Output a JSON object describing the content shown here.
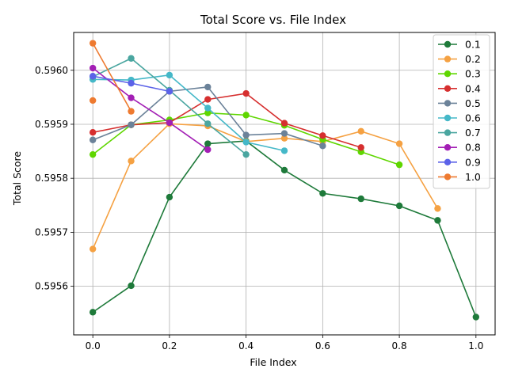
{
  "chart_data": {
    "type": "line",
    "title": "Total Score vs. File Index",
    "xlabel": "File Index",
    "ylabel": "Total Score",
    "xlim": [
      -0.05,
      1.05
    ],
    "ylim": [
      0.59551,
      0.59607
    ],
    "xticks": [
      0.0,
      0.2,
      0.4,
      0.6,
      0.8,
      1.0
    ],
    "xtick_labels": [
      "0.0",
      "0.2",
      "0.4",
      "0.6",
      "0.8",
      "1.0"
    ],
    "yticks": [
      0.5956,
      0.5957,
      0.5958,
      0.5959,
      0.596
    ],
    "ytick_labels": [
      "0.5956",
      "0.5957",
      "0.5958",
      "0.5959",
      "0.5960"
    ],
    "grid": true,
    "legend_position": "top-right",
    "series": [
      {
        "name": "0.1",
        "color": "#1e7a3a",
        "x": [
          0.0,
          0.1,
          0.2,
          0.3,
          0.4,
          0.5,
          0.6,
          0.7,
          0.8,
          0.9,
          1.0
        ],
        "y": [
          0.595552,
          0.595601,
          0.595765,
          0.595864,
          0.595869,
          0.595815,
          0.595772,
          0.595762,
          0.595749,
          0.595722,
          0.595543
        ]
      },
      {
        "name": "0.2",
        "color": "#f5a142",
        "x": [
          0.0,
          0.1,
          0.2,
          0.3,
          0.4,
          0.5,
          0.6,
          0.7,
          0.8,
          0.9
        ],
        "y": [
          0.595669,
          0.595832,
          0.595901,
          0.595897,
          0.595868,
          0.595874,
          0.595868,
          0.595887,
          0.595864,
          0.595744
        ]
      },
      {
        "name": "0.3",
        "color": "#5fd600",
        "x": [
          0.0,
          0.1,
          0.2,
          0.3,
          0.4,
          0.5,
          0.6,
          0.7,
          0.8
        ],
        "y": [
          0.595844,
          0.595899,
          0.595908,
          0.595921,
          0.595917,
          0.595898,
          0.595872,
          0.595849,
          0.595825
        ]
      },
      {
        "name": "0.4",
        "color": "#d62f2f",
        "x": [
          0.0,
          0.1,
          0.2,
          0.3,
          0.4,
          0.5,
          0.6,
          0.7
        ],
        "y": [
          0.595885,
          0.595899,
          0.595903,
          0.595946,
          0.595957,
          0.595902,
          0.595879,
          0.595857
        ]
      },
      {
        "name": "0.5",
        "color": "#6b8299",
        "x": [
          0.0,
          0.1,
          0.2,
          0.3,
          0.4,
          0.5,
          0.6
        ],
        "y": [
          0.595871,
          0.595899,
          0.595961,
          0.595969,
          0.59588,
          0.595883,
          0.59586
        ]
      },
      {
        "name": "0.6",
        "color": "#45b8c8",
        "x": [
          0.0,
          0.1,
          0.2,
          0.3,
          0.4,
          0.5
        ],
        "y": [
          0.595983,
          0.595982,
          0.595991,
          0.59593,
          0.595867,
          0.595851
        ]
      },
      {
        "name": "0.7",
        "color": "#4aa6a0",
        "x": [
          0.0,
          0.1,
          0.2,
          0.3,
          0.4
        ],
        "y": [
          0.595988,
          0.596022,
          0.595963,
          0.595901,
          0.595844
        ]
      },
      {
        "name": "0.8",
        "color": "#a31fb5",
        "x": [
          0.0,
          0.1,
          0.2,
          0.3
        ],
        "y": [
          0.596004,
          0.595949,
          0.595903,
          0.595853
        ]
      },
      {
        "name": "0.9",
        "color": "#5b62e8",
        "x": [
          0.0,
          0.1,
          0.2
        ],
        "y": [
          0.595989,
          0.595976,
          0.595961
        ]
      },
      {
        "name": "1.0",
        "color": "#ee7a30",
        "x": [
          0.0,
          0.1
        ],
        "y": [
          0.59605,
          0.595924
        ]
      },
      {
        "name": "",
        "color": "#ee7a30",
        "x": [
          0.0
        ],
        "y": [
          0.595944
        ]
      }
    ]
  }
}
